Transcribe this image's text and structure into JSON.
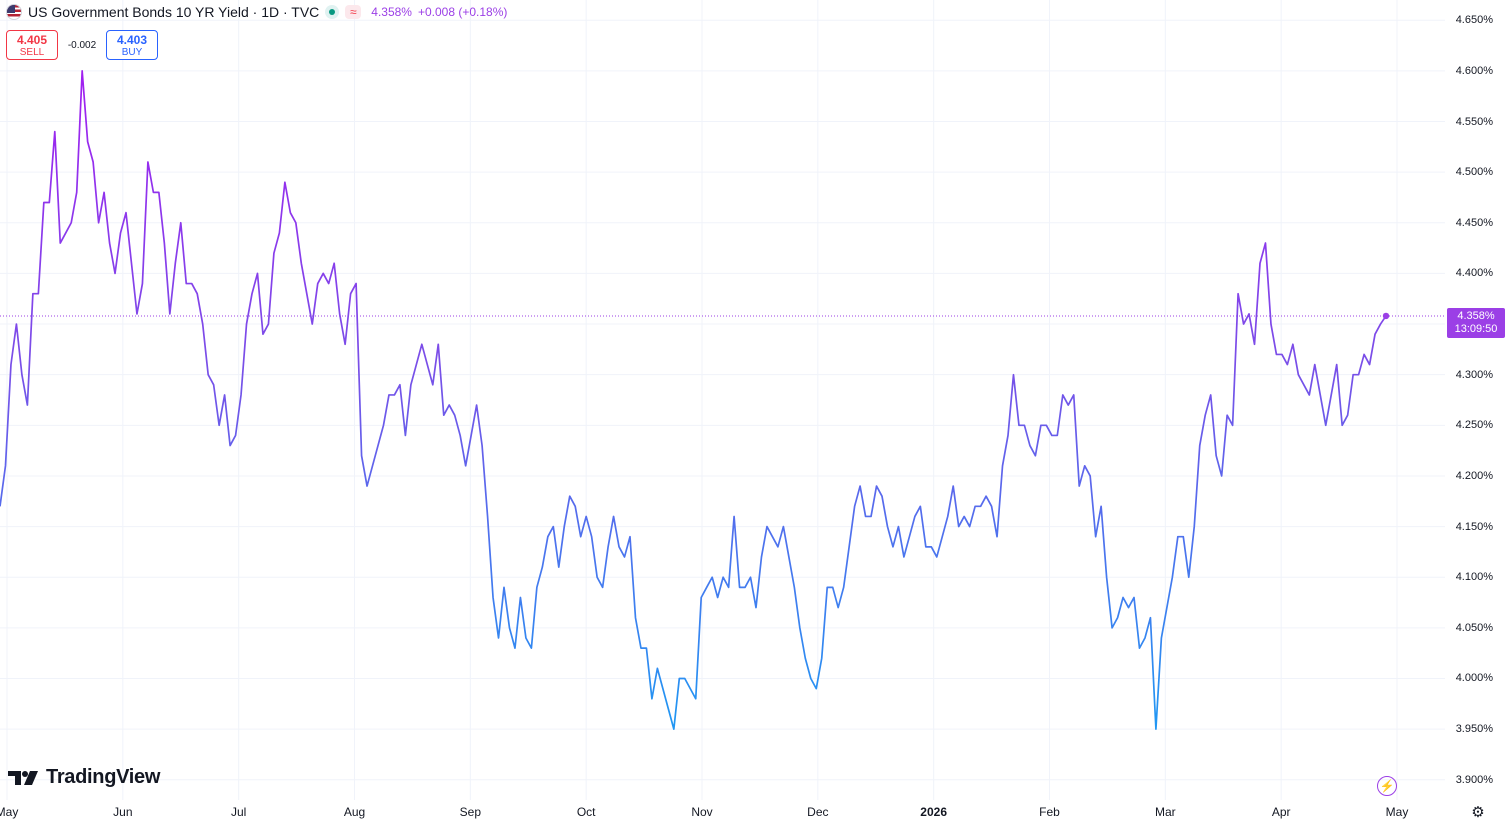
{
  "header": {
    "title": "US Government Bonds 10 YR Yield · 1D · TVC",
    "last_price": "4.358%",
    "change": "+0.008 (+0.18%)",
    "flag_icon": "us-flag-icon",
    "status_icon": "market-open-dot-icon",
    "approx_icon": "approx-icon"
  },
  "trade": {
    "sell_price": "4.405",
    "sell_label": "SELL",
    "spread": "-0.002",
    "buy_price": "4.403",
    "buy_label": "BUY"
  },
  "last_label": {
    "price": "4.358%",
    "time": "13:09:50"
  },
  "logo": {
    "text": "TradingView"
  },
  "colors": {
    "line_high": "#a020f0",
    "line_low": "#2196f3",
    "last_price": "#9b3fe6",
    "grid": "#f0f3fa"
  },
  "chart_data": {
    "type": "line",
    "title": "US Government Bonds 10 YR Yield · 1D · TVC",
    "xlabel": "",
    "ylabel": "",
    "ylim": [
      3.88,
      4.67
    ],
    "y_ticks": [
      "4.650%",
      "4.600%",
      "4.550%",
      "4.500%",
      "4.450%",
      "4.400%",
      "4.350%",
      "4.300%",
      "4.250%",
      "4.200%",
      "4.150%",
      "4.100%",
      "4.050%",
      "4.000%",
      "3.950%",
      "3.900%"
    ],
    "x_ticks": [
      "May",
      "Jun",
      "Jul",
      "Aug",
      "Sep",
      "Oct",
      "Nov",
      "Dec",
      "2026",
      "Feb",
      "Mar",
      "Apr",
      "May"
    ],
    "x_bold": "2026",
    "grid": true,
    "last_value": 4.358,
    "series": [
      {
        "values": [
          4.17,
          4.21,
          4.31,
          4.35,
          4.3,
          4.27,
          4.38,
          4.38,
          4.47,
          4.47,
          4.54,
          4.43,
          4.44,
          4.45,
          4.48,
          4.6,
          4.53,
          4.51,
          4.45,
          4.48,
          4.43,
          4.4,
          4.44,
          4.46,
          4.41,
          4.36,
          4.39,
          4.51,
          4.48,
          4.48,
          4.43,
          4.36,
          4.41,
          4.45,
          4.39,
          4.39,
          4.38,
          4.35,
          4.3,
          4.29,
          4.25,
          4.28,
          4.23,
          4.24,
          4.28,
          4.35,
          4.38,
          4.4,
          4.34,
          4.35,
          4.42,
          4.44,
          4.49,
          4.46,
          4.45,
          4.41,
          4.38,
          4.35,
          4.39,
          4.4,
          4.39,
          4.41,
          4.36,
          4.33,
          4.38,
          4.39,
          4.22,
          4.19,
          4.21,
          4.23,
          4.25,
          4.28,
          4.28,
          4.29,
          4.24,
          4.29,
          4.31,
          4.33,
          4.31,
          4.29,
          4.33,
          4.26,
          4.27,
          4.26,
          4.24,
          4.21,
          4.24,
          4.27,
          4.23,
          4.16,
          4.08,
          4.04,
          4.09,
          4.05,
          4.03,
          4.08,
          4.04,
          4.03,
          4.09,
          4.11,
          4.14,
          4.15,
          4.11,
          4.15,
          4.18,
          4.17,
          4.14,
          4.16,
          4.14,
          4.1,
          4.09,
          4.13,
          4.16,
          4.13,
          4.12,
          4.14,
          4.06,
          4.03,
          4.03,
          3.98,
          4.01,
          3.99,
          3.97,
          3.95,
          4.0,
          4.0,
          3.99,
          3.98,
          4.08,
          4.09,
          4.1,
          4.08,
          4.1,
          4.09,
          4.16,
          4.09,
          4.09,
          4.1,
          4.07,
          4.12,
          4.15,
          4.14,
          4.13,
          4.15,
          4.12,
          4.09,
          4.05,
          4.02,
          4.0,
          3.99,
          4.02,
          4.09,
          4.09,
          4.07,
          4.09,
          4.13,
          4.17,
          4.19,
          4.16,
          4.16,
          4.19,
          4.18,
          4.15,
          4.13,
          4.15,
          4.12,
          4.14,
          4.16,
          4.17,
          4.13,
          4.13,
          4.12,
          4.14,
          4.16,
          4.19,
          4.15,
          4.16,
          4.15,
          4.17,
          4.17,
          4.18,
          4.17,
          4.14,
          4.21,
          4.24,
          4.3,
          4.25,
          4.25,
          4.23,
          4.22,
          4.25,
          4.25,
          4.24,
          4.24,
          4.28,
          4.27,
          4.28,
          4.19,
          4.21,
          4.2,
          4.14,
          4.17,
          4.1,
          4.05,
          4.06,
          4.08,
          4.07,
          4.08,
          4.03,
          4.04,
          4.06,
          3.95,
          4.04,
          4.07,
          4.1,
          4.14,
          4.14,
          4.1,
          4.15,
          4.23,
          4.26,
          4.28,
          4.22,
          4.2,
          4.26,
          4.25,
          4.38,
          4.35,
          4.36,
          4.33,
          4.41,
          4.43,
          4.35,
          4.32,
          4.32,
          4.31,
          4.33,
          4.3,
          4.29,
          4.28,
          4.31,
          4.28,
          4.25,
          4.28,
          4.31,
          4.25,
          4.26,
          4.3,
          4.3,
          4.32,
          4.31,
          4.34,
          4.35,
          4.358
        ]
      }
    ]
  },
  "icons": {
    "flash": "flash-icon",
    "settings": "gear-icon"
  }
}
